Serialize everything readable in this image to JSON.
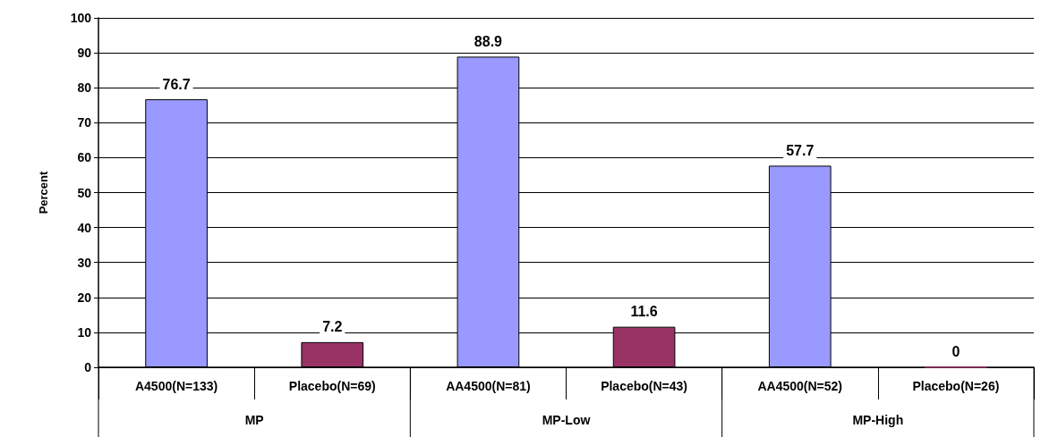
{
  "chart_data": {
    "type": "bar",
    "ylabel": "Percent",
    "categories": [
      "A4500(N=133)",
      "Placebo(N=69)",
      "AA4500(N=81)",
      "Placebo(N=43)",
      "AA4500(N=52)",
      "Placebo(N=26)"
    ],
    "values": [
      76.7,
      7.2,
      88.9,
      11.6,
      57.7,
      0
    ],
    "colors": [
      "#9999ff",
      "#993366",
      "#9999ff",
      "#993366",
      "#9999ff",
      "#993366"
    ],
    "ylim": [
      0,
      100
    ],
    "yticks": [
      0,
      10,
      20,
      30,
      40,
      50,
      60,
      70,
      80,
      90,
      100
    ],
    "grid": "y",
    "data_labels": true,
    "annotations": [
      "MP",
      "MP-Low",
      "MP-High"
    ]
  }
}
